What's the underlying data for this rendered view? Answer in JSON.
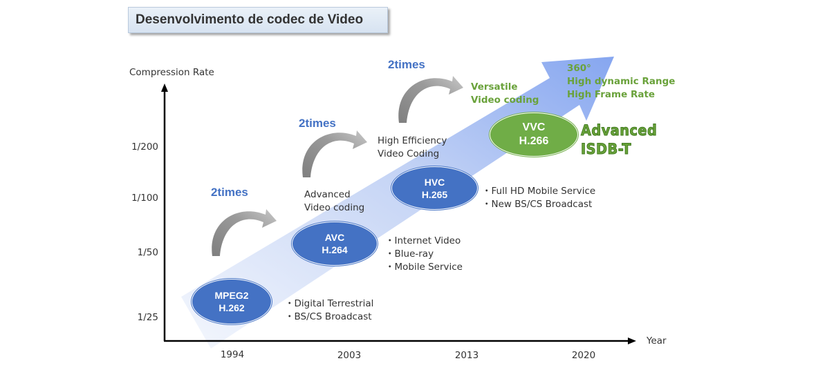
{
  "title": "Desenvolvimento de codec de Video",
  "axes": {
    "y_label": "Compression Rate",
    "x_label": "Year",
    "y_ticks": [
      "1/200",
      "1/100",
      "1/50",
      "1/25"
    ],
    "x_ticks": [
      "1994",
      "2003",
      "2013",
      "2020"
    ]
  },
  "steps": [
    {
      "line1": "MPEG2",
      "line2": "H.262",
      "color": "#4472c4",
      "features": [
        "・Digital Terrestrial",
        "・BS/CS Broadcast"
      ]
    },
    {
      "line1": "AVC",
      "line2": "H.264",
      "color": "#4472c4",
      "name_line1": "Advanced",
      "name_line2": "Video coding",
      "features": [
        "・Internet Video",
        "・Blue-ray",
        "・Mobile Service"
      ]
    },
    {
      "line1": "HVC",
      "line2": "H.265",
      "color": "#4472c4",
      "name_line1": "High Efficiency",
      "name_line2": "Video Coding",
      "features": [
        "・Full HD Mobile Service",
        "・New BS/CS Broadcast"
      ]
    },
    {
      "line1": "VVC",
      "line2": "H.266",
      "color": "#70ad47",
      "name_line1": "Versatile",
      "name_line2": "Video coding",
      "features": [
        "360°",
        "High dynamic Range",
        "High Frame Rate"
      ]
    }
  ],
  "times_labels": [
    "2times",
    "2times",
    "2times"
  ],
  "advanced": {
    "line1": "Advanced",
    "line2": "ISDB-T"
  },
  "colors": {
    "accent_blue": "#4472c4",
    "accent_green": "#70ad47",
    "arrow_light": "#eef3fb",
    "arrow_dark": "#8aaaf0"
  }
}
